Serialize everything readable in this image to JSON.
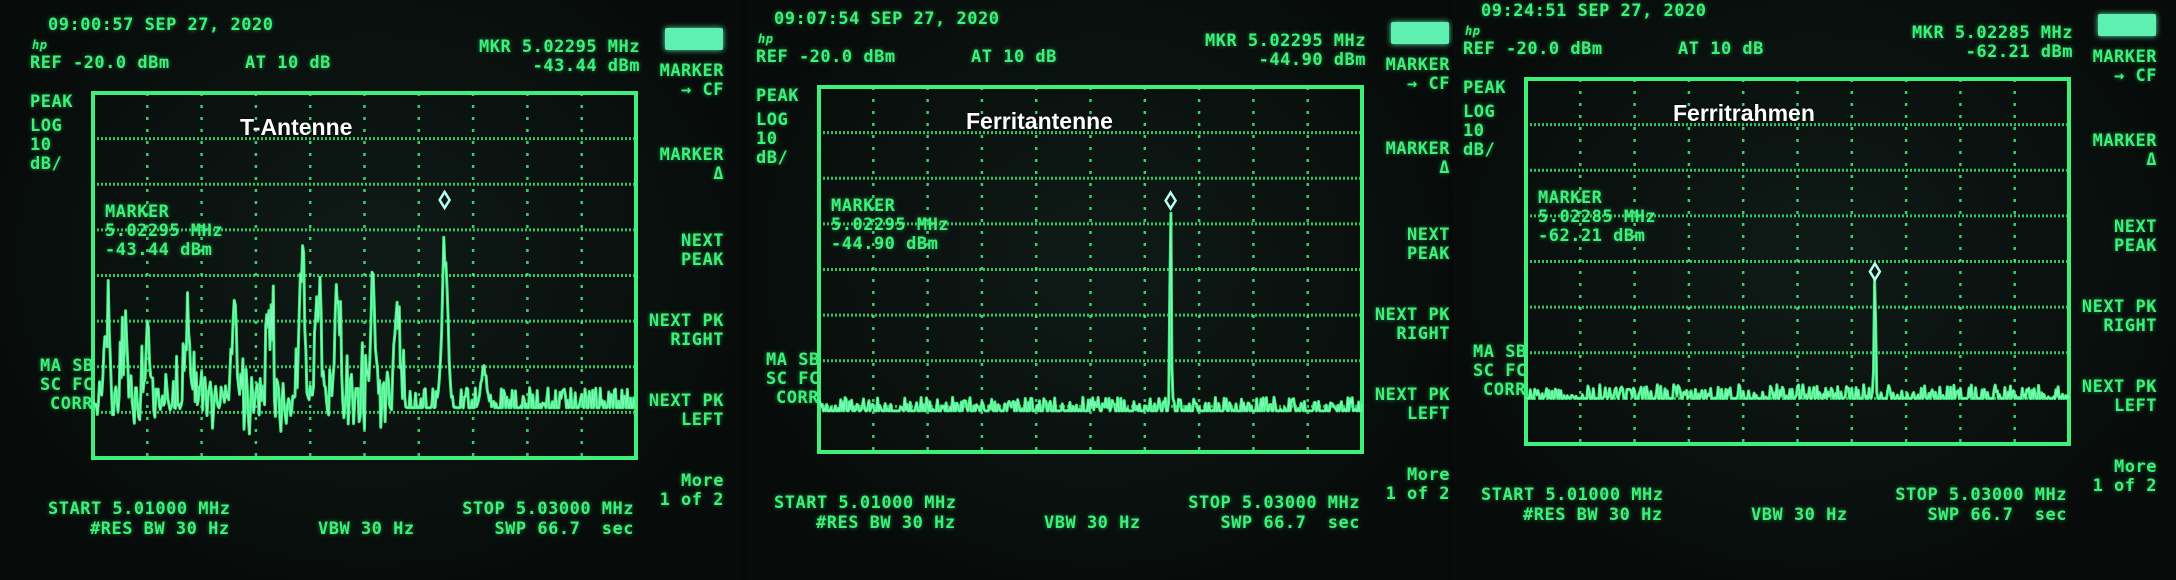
{
  "panels": [
    {
      "title": "T-Antenne",
      "timestamp": "09:00:57 SEP 27, 2020",
      "logo": "hp",
      "ref": "REF -20.0 dBm",
      "atten": "AT 10 dB",
      "mkr_freq": "MKR 5.02295 MHz",
      "mkr_level": "-43.44 dBm",
      "detector": "PEAK",
      "scale_lines": [
        "LOG",
        "10",
        "dB/"
      ],
      "marker_box": [
        "MARKER",
        "5.02295 MHz",
        "-43.44 dBm"
      ],
      "status_lines": [
        "MA SB",
        "SC FC",
        "CORR"
      ],
      "softkeys": [
        "MARKER",
        "→ CF",
        "MARKER",
        "Δ",
        "NEXT",
        "PEAK",
        "NEXT PK",
        "RIGHT",
        "NEXT PK",
        "LEFT",
        "More",
        "1 of 2"
      ],
      "start": "START 5.01000 MHz",
      "rbw": "#RES BW 30 Hz",
      "vbw": "VBW 30 Hz",
      "stop": "STOP 5.03000 MHz",
      "sweep": "SWP 66.7  sec"
    },
    {
      "title": "Ferritantenne",
      "timestamp": "09:07:54 SEP 27, 2020",
      "logo": "hp",
      "ref": "REF -20.0 dBm",
      "atten": "AT 10 dB",
      "mkr_freq": "MKR 5.02295 MHz",
      "mkr_level": "-44.90 dBm",
      "detector": "PEAK",
      "scale_lines": [
        "LOG",
        "10",
        "dB/"
      ],
      "marker_box": [
        "MARKER",
        "5.02295 MHz",
        "-44.90 dBm"
      ],
      "status_lines": [
        "MA SB",
        "SC FC",
        "CORR"
      ],
      "softkeys": [
        "MARKER",
        "→ CF",
        "MARKER",
        "Δ",
        "NEXT",
        "PEAK",
        "NEXT PK",
        "RIGHT",
        "NEXT PK",
        "LEFT",
        "More",
        "1 of 2"
      ],
      "start": "START 5.01000 MHz",
      "rbw": "#RES BW 30 Hz",
      "vbw": "VBW 30 Hz",
      "stop": "STOP 5.03000 MHz",
      "sweep": "SWP 66.7  sec"
    },
    {
      "title": "Ferritrahmen",
      "timestamp": "09:24:51 SEP 27, 2020",
      "logo": "hp",
      "ref": "REF -20.0 dBm",
      "atten": "AT 10 dB",
      "mkr_freq": "MKR 5.02285 MHz",
      "mkr_level": "-62.21 dBm",
      "detector": "PEAK",
      "scale_lines": [
        "LOG",
        "10",
        "dB/"
      ],
      "marker_box": [
        "MARKER",
        "5.02285 MHz",
        "-62.21 dBm"
      ],
      "status_lines": [
        "MA SB",
        "SC FC",
        "CORR"
      ],
      "softkeys": [
        "MARKER",
        "→ CF",
        "MARKER",
        "Δ",
        "NEXT",
        "PEAK",
        "NEXT PK",
        "RIGHT",
        "NEXT PK",
        "LEFT",
        "More",
        "1 of 2"
      ],
      "start": "START 5.01000 MHz",
      "rbw": "#RES BW 30 Hz",
      "vbw": "VBW 30 Hz",
      "stop": "STOP 5.03000 MHz",
      "sweep": "SWP 66.7  sec"
    }
  ],
  "colors": {
    "trace": "#3cf07a",
    "trace_highlight": "#b8fff0",
    "text": "#3cf07a",
    "softkey_highlight": "#5ef0b0"
  },
  "chart_data": [
    {
      "type": "line",
      "title": "T-Antenne",
      "xlabel": "",
      "ylabel": "",
      "xlim": [
        5.01,
        5.03
      ],
      "ylim": [
        -100,
        -20
      ],
      "x_unit": "MHz",
      "y_unit": "dBm",
      "y_scale": "log 10 dB/div",
      "grid": true,
      "noise_floor": -89,
      "peaks": [
        {
          "x": 5.0105,
          "y": -64
        },
        {
          "x": 5.0112,
          "y": -68
        },
        {
          "x": 5.012,
          "y": -70
        },
        {
          "x": 5.0135,
          "y": -66
        },
        {
          "x": 5.0152,
          "y": -64
        },
        {
          "x": 5.0165,
          "y": -60
        },
        {
          "x": 5.0177,
          "y": -49
        },
        {
          "x": 5.0183,
          "y": -55
        },
        {
          "x": 5.019,
          "y": -58
        },
        {
          "x": 5.0203,
          "y": -61
        },
        {
          "x": 5.0212,
          "y": -64
        },
        {
          "x": 5.02295,
          "y": -43.44
        },
        {
          "x": 5.0244,
          "y": -77
        }
      ],
      "marker": {
        "x": 5.02295,
        "y": -43.44
      }
    },
    {
      "type": "line",
      "title": "Ferritantenne",
      "xlabel": "",
      "ylabel": "",
      "xlim": [
        5.01,
        5.03
      ],
      "ylim": [
        -100,
        -20
      ],
      "x_unit": "MHz",
      "y_unit": "dBm",
      "y_scale": "log 10 dB/div",
      "grid": true,
      "noise_floor": -91,
      "peaks": [
        {
          "x": 5.02295,
          "y": -44.9
        }
      ],
      "marker": {
        "x": 5.02295,
        "y": -44.9
      }
    },
    {
      "type": "line",
      "title": "Ferritrahmen",
      "xlabel": "",
      "ylabel": "",
      "xlim": [
        5.01,
        5.03
      ],
      "ylim": [
        -100,
        -20
      ],
      "x_unit": "MHz",
      "y_unit": "dBm",
      "y_scale": "log 10 dB/div",
      "grid": true,
      "noise_floor": -90,
      "peaks": [
        {
          "x": 5.0202,
          "y": -87
        },
        {
          "x": 5.02285,
          "y": -62.21
        }
      ],
      "marker": {
        "x": 5.02285,
        "y": -62.21
      }
    }
  ]
}
